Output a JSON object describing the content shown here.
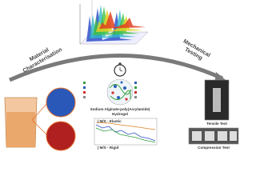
{
  "labels": {
    "left_arrow": [
      "Material",
      "Characterisation"
    ],
    "right_arrow": [
      "Mechanical",
      "Testing"
    ],
    "hydrogel": [
      "Sodium Alginate-poly(Acrylamide)",
      "Hydrogel"
    ],
    "elastic": "| M/S - Elastic",
    "rigid": "| M/S - Rigid",
    "tensile": "Tensile Test",
    "compression": "Compression Test"
  }
}
